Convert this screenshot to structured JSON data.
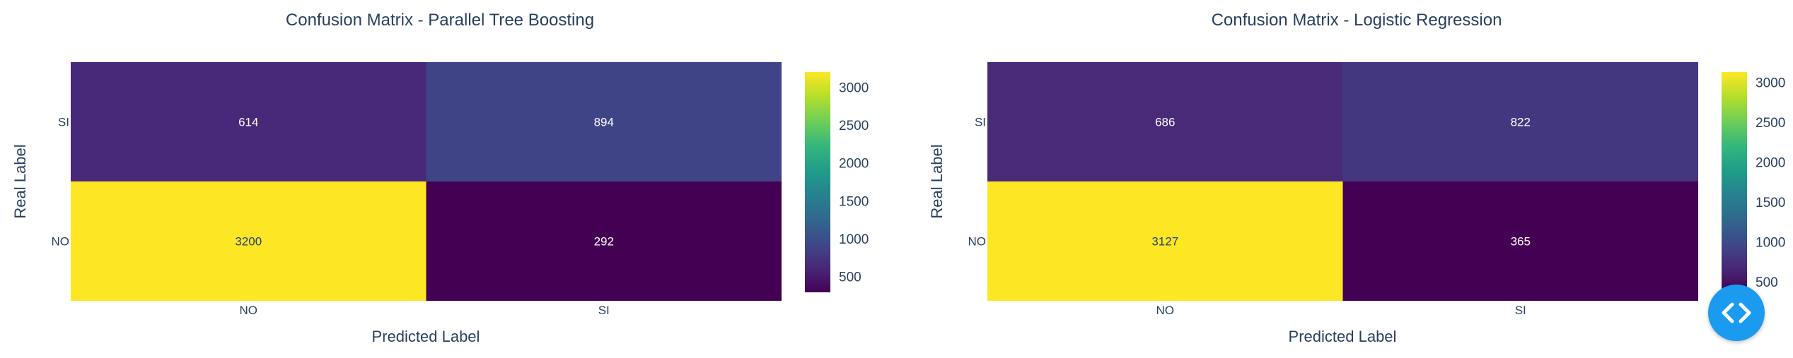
{
  "chart_data": [
    {
      "type": "heatmap",
      "title": "Confusion Matrix - Parallel Tree Boosting",
      "xlabel": "Predicted Label",
      "ylabel": "Real Label",
      "x_categories": [
        "NO",
        "SI"
      ],
      "y_categories": [
        "NO",
        "SI"
      ],
      "z": [
        [
          3200,
          292
        ],
        [
          614,
          894
        ]
      ],
      "cell_text": [
        [
          "3200",
          "292"
        ],
        [
          "614",
          "894"
        ]
      ],
      "colorscale": "Viridis",
      "zrange": [
        292,
        3200
      ],
      "colorbar_ticks": [
        "500",
        "1000",
        "1500",
        "2000",
        "2500",
        "3000"
      ]
    },
    {
      "type": "heatmap",
      "title": "Confusion Matrix - Logistic Regression",
      "xlabel": "Predicted Label",
      "ylabel": "Real Label",
      "x_categories": [
        "NO",
        "SI"
      ],
      "y_categories": [
        "NO",
        "SI"
      ],
      "z": [
        [
          3127,
          365
        ],
        [
          686,
          822
        ]
      ],
      "cell_text": [
        [
          "3127",
          "365"
        ],
        [
          "686",
          "822"
        ]
      ],
      "colorscale": "Viridis",
      "zrange": [
        365,
        3127
      ],
      "colorbar_ticks": [
        "500",
        "1000",
        "1500",
        "2000",
        "2500",
        "3000"
      ]
    }
  ],
  "toggle_button": {
    "icon": "code-toggle-icon",
    "color": "#1a9bf0"
  }
}
